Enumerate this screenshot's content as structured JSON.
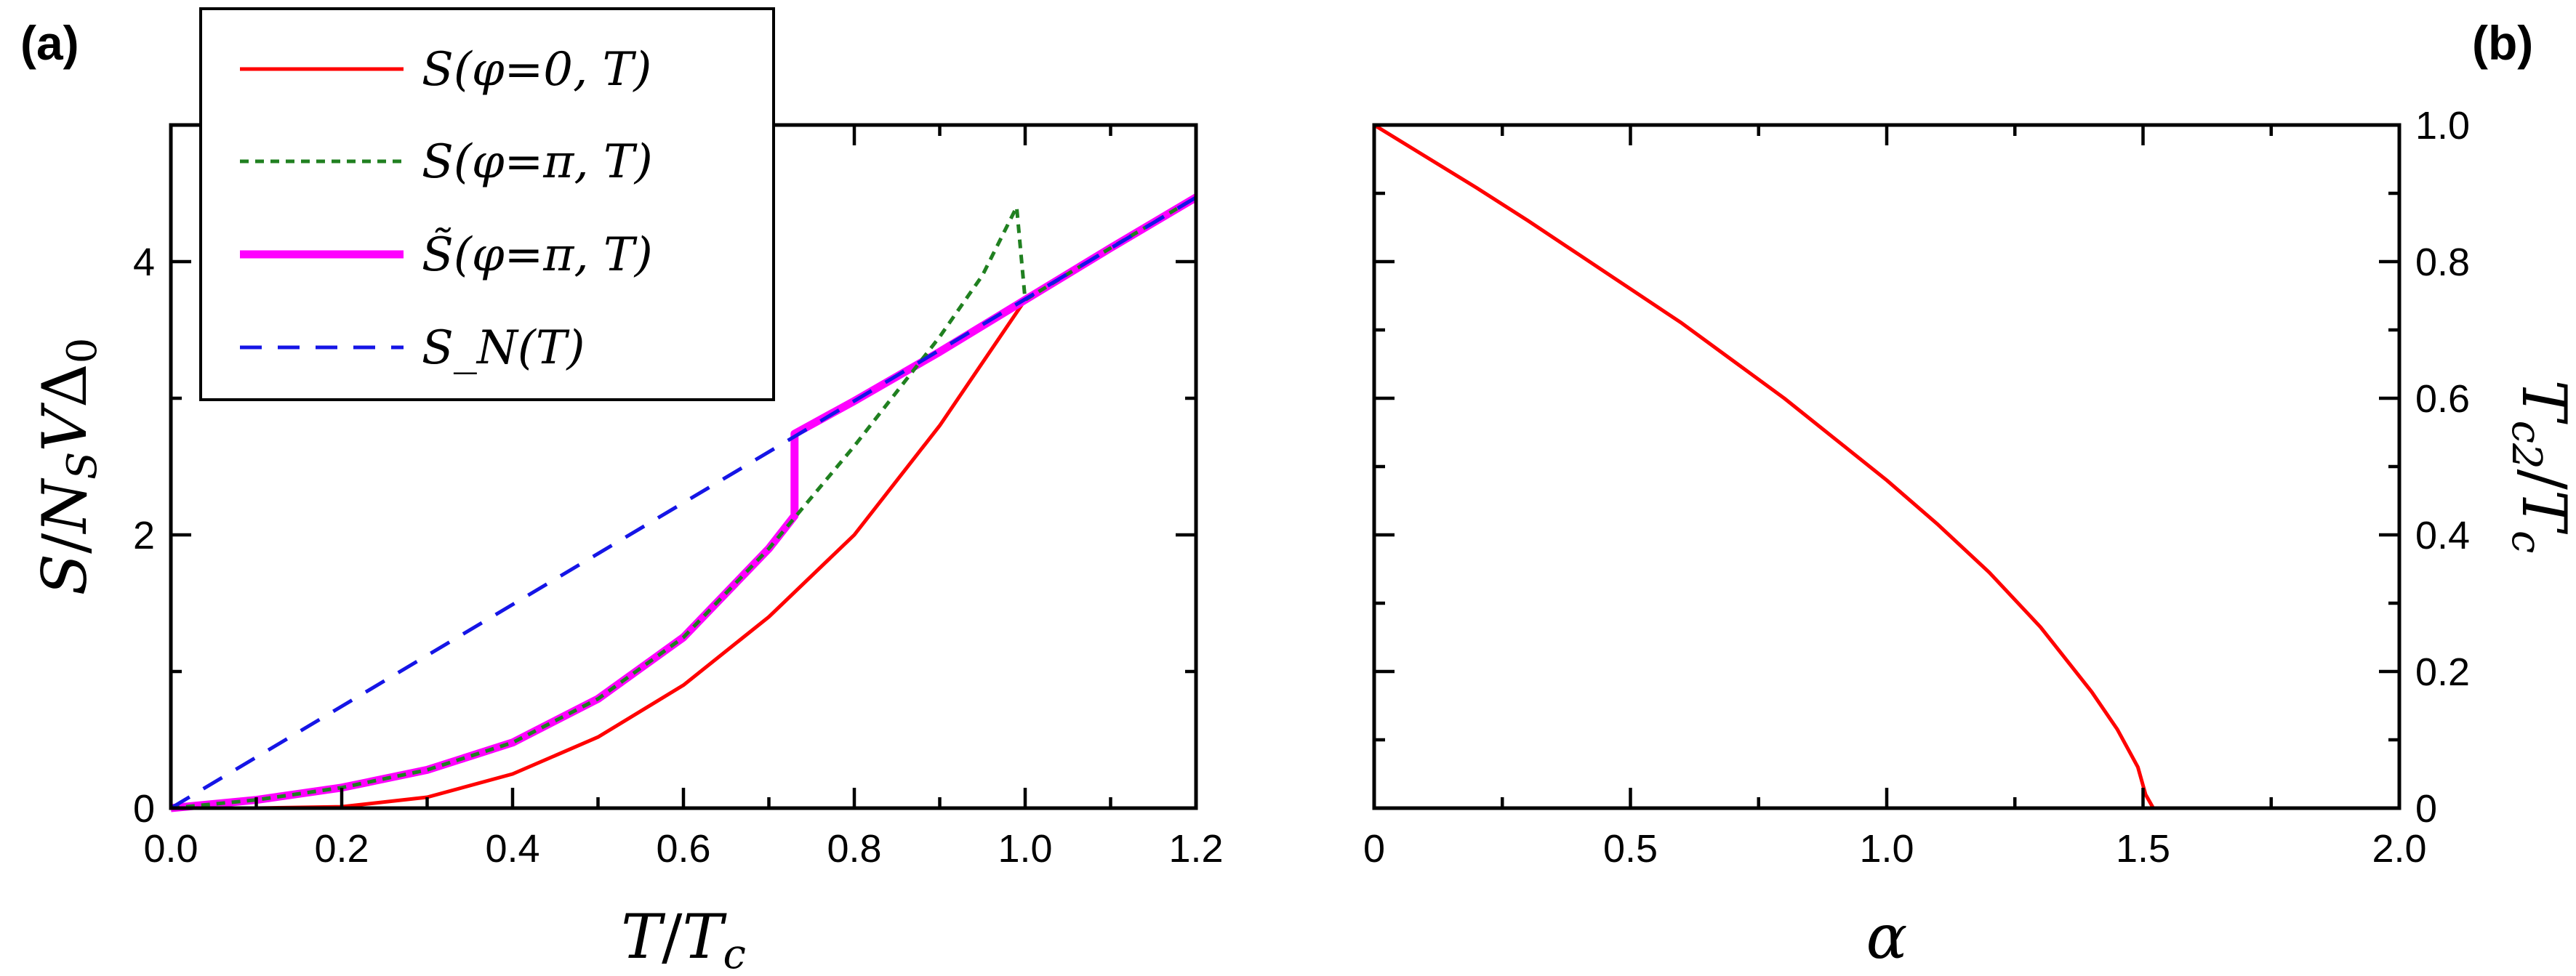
{
  "panel_labels": {
    "a": "(a)",
    "b": "(b)"
  },
  "colors": {
    "red": "#ff0000",
    "green": "#208020",
    "magenta": "#ff00ff",
    "blue": "#1515e6"
  },
  "chart_data": [
    {
      "type": "line",
      "panel": "(a)",
      "title": "",
      "xlabel": "T/T_c",
      "ylabel": "S/N_S V Δ_0",
      "xlim": [
        0,
        1.2
      ],
      "ylim": [
        0,
        5.0
      ],
      "xticks": [
        0.0,
        0.2,
        0.4,
        0.6,
        0.8,
        1.0,
        1.2
      ],
      "xtick_labels": [
        "0.0",
        "0.2",
        "0.4",
        "0.6",
        "0.8",
        "1.0",
        "1.2"
      ],
      "yticks": [
        0,
        2,
        4
      ],
      "ytick_labels": [
        "0",
        "2",
        "4"
      ],
      "grid": false,
      "legend_position": "top-left",
      "series": [
        {
          "name": "S(φ=0, T)",
          "color": "#ff0000",
          "style": "solid",
          "x": [
            0.0,
            0.1,
            0.2,
            0.3,
            0.4,
            0.5,
            0.6,
            0.7,
            0.8,
            0.9,
            1.0,
            1.1,
            1.2
          ],
          "y": [
            0.0,
            0.0,
            0.01,
            0.08,
            0.25,
            0.52,
            0.9,
            1.4,
            2.0,
            2.8,
            3.72,
            4.1,
            4.47
          ]
        },
        {
          "name": "S(φ=π, T)",
          "color": "#208020",
          "style": "dotted",
          "x": [
            0.0,
            0.1,
            0.2,
            0.3,
            0.4,
            0.5,
            0.6,
            0.7,
            0.8,
            0.9,
            0.95,
            0.99,
            1.0,
            1.1,
            1.2
          ],
          "y": [
            0.0,
            0.06,
            0.15,
            0.28,
            0.48,
            0.8,
            1.25,
            1.9,
            2.65,
            3.45,
            3.9,
            4.4,
            3.72,
            4.1,
            4.47
          ]
        },
        {
          "name": "S̃(φ=π, T)",
          "color": "#ff00ff",
          "style": "solid-thick",
          "x": [
            0.0,
            0.1,
            0.2,
            0.3,
            0.4,
            0.5,
            0.6,
            0.7,
            0.73,
            0.73,
            0.8,
            0.9,
            1.0,
            1.1,
            1.2
          ],
          "y": [
            0.0,
            0.06,
            0.15,
            0.28,
            0.48,
            0.8,
            1.25,
            1.9,
            2.14,
            2.74,
            2.98,
            3.34,
            3.72,
            4.1,
            4.47
          ]
        },
        {
          "name": "S_N(T)",
          "color": "#1515e6",
          "style": "dashed",
          "x": [
            0.0,
            1.2
          ],
          "y": [
            0.0,
            4.47
          ]
        }
      ]
    },
    {
      "type": "line",
      "panel": "(b)",
      "title": "",
      "xlabel": "α",
      "ylabel": "T_c2/T_c",
      "xlim": [
        0,
        2.0
      ],
      "ylim": [
        0,
        1.0
      ],
      "xticks": [
        0,
        0.5,
        1.0,
        1.5,
        2.0
      ],
      "xtick_labels": [
        "0",
        "0.5",
        "1.0",
        "1.5",
        "2.0"
      ],
      "yticks": [
        0,
        0.2,
        0.4,
        0.6,
        0.8,
        1.0
      ],
      "ytick_labels": [
        "0",
        "0.2",
        "0.4",
        "0.6",
        "0.8",
        "1.0"
      ],
      "grid": false,
      "series": [
        {
          "color": "#ff0000",
          "style": "solid",
          "x": [
            0.0,
            0.1,
            0.2,
            0.3,
            0.4,
            0.5,
            0.6,
            0.7,
            0.8,
            0.9,
            1.0,
            1.1,
            1.2,
            1.3,
            1.4,
            1.45,
            1.49,
            1.505,
            1.52,
            1.6,
            1.8,
            2.0
          ],
          "y": [
            1.0,
            0.954,
            0.908,
            0.86,
            0.81,
            0.76,
            0.71,
            0.655,
            0.6,
            0.54,
            0.48,
            0.415,
            0.345,
            0.265,
            0.17,
            0.115,
            0.06,
            0.02,
            0.0,
            0.0,
            0.0,
            0.0
          ]
        }
      ]
    }
  ]
}
